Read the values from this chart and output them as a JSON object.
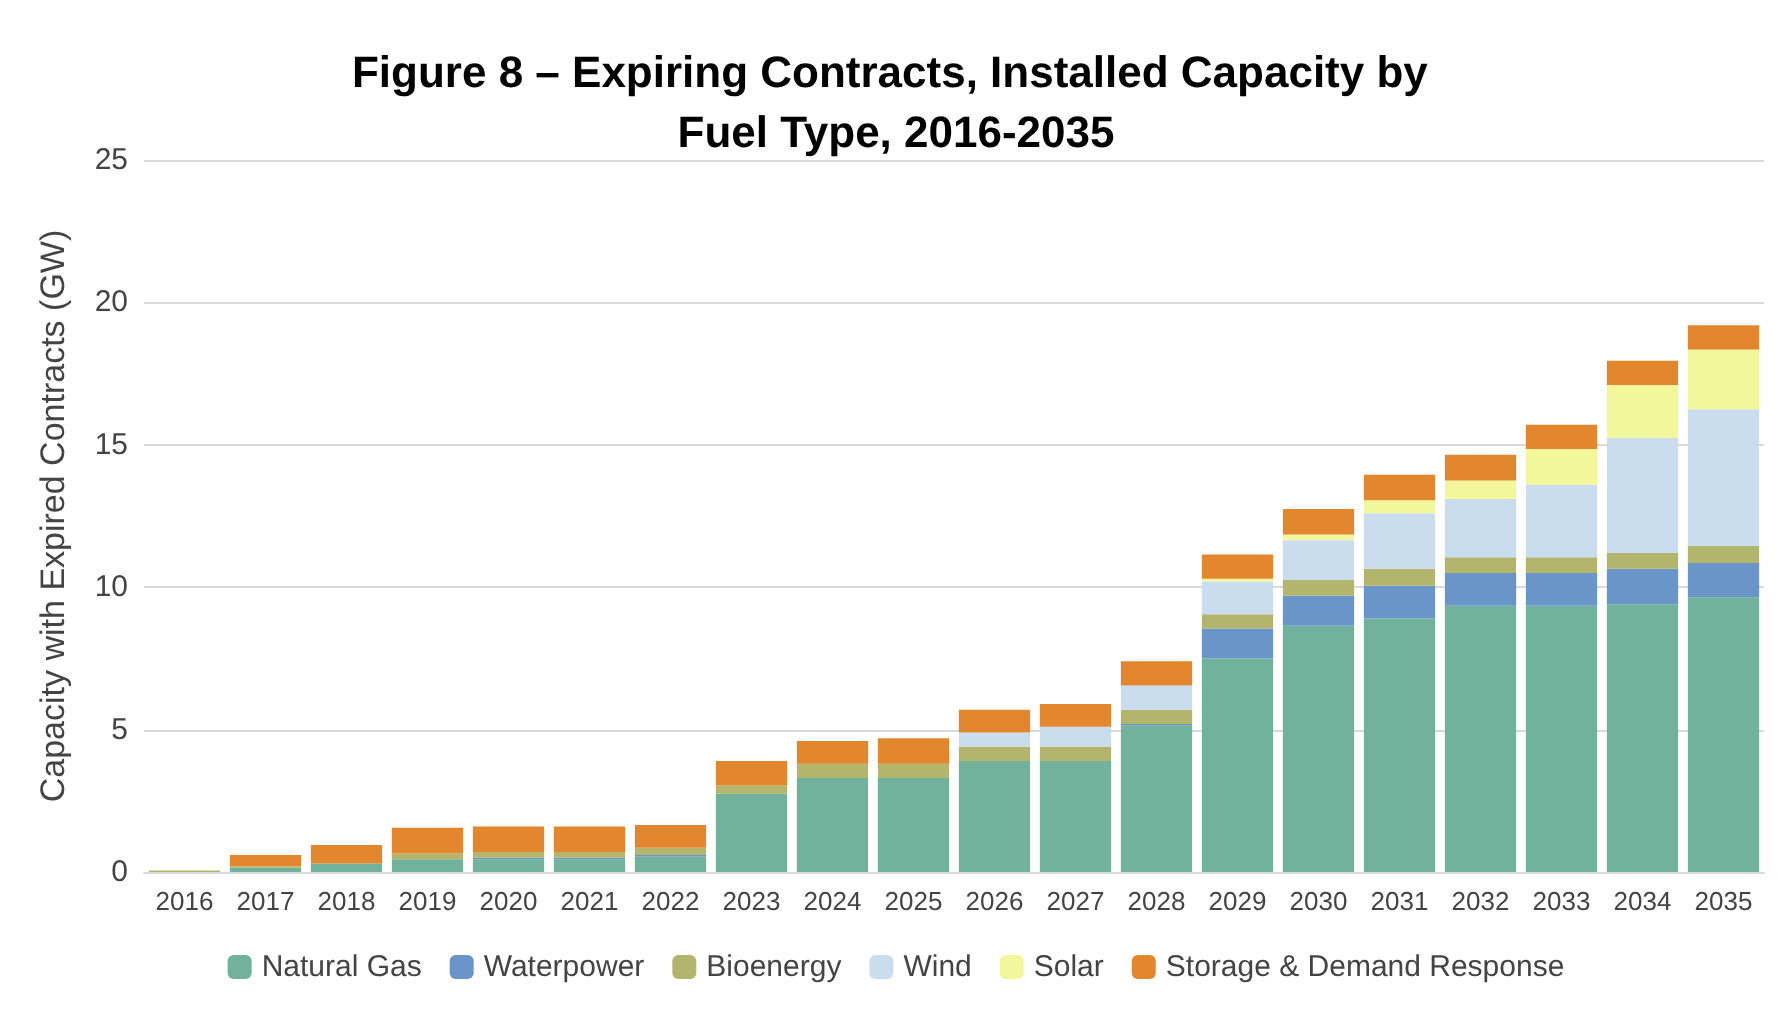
{
  "chart_data": {
    "type": "bar",
    "title": "Figure 8 – Expiring Contracts, Installed Capacity by Fuel Type, 2016-2035",
    "ylabel": "Capacity with Expired Contracts (GW)",
    "categories": [
      "2016",
      "2017",
      "2018",
      "2019",
      "2020",
      "2021",
      "2022",
      "2023",
      "2024",
      "2025",
      "2026",
      "2027",
      "2028",
      "2029",
      "2030",
      "2031",
      "2032",
      "2033",
      "2034",
      "2035"
    ],
    "stacked": true,
    "ylim": [
      0,
      25
    ],
    "yticks": [
      0,
      5,
      10,
      15,
      20,
      25
    ],
    "grid": "y",
    "legend": "bottom",
    "series": [
      {
        "name": "Natural Gas",
        "color": "#70b29c",
        "values": [
          0,
          0.15,
          0.3,
          0.45,
          0.45,
          0.45,
          0.55,
          2.75,
          3.3,
          3.3,
          3.9,
          3.9,
          5.15,
          7.5,
          8.65,
          8.9,
          9.35,
          9.35,
          9.4,
          9.65
        ]
      },
      {
        "name": "Waterpower",
        "color": "#6a95c8",
        "values": [
          0,
          0,
          0,
          0,
          0.05,
          0.05,
          0.05,
          0,
          0,
          0,
          0,
          0,
          0.05,
          1.05,
          1.05,
          1.15,
          1.15,
          1.15,
          1.25,
          1.2
        ]
      },
      {
        "name": "Bioenergy",
        "color": "#b2b56b",
        "values": [
          0.05,
          0.05,
          0,
          0.2,
          0.2,
          0.2,
          0.25,
          0.3,
          0.5,
          0.5,
          0.5,
          0.5,
          0.5,
          0.5,
          0.55,
          0.6,
          0.55,
          0.55,
          0.55,
          0.6
        ]
      },
      {
        "name": "Wind",
        "color": "#c9ddee",
        "values": [
          0,
          0,
          0,
          0,
          0,
          0,
          0,
          0,
          0,
          0,
          0.5,
          0.7,
          0.85,
          1.15,
          1.4,
          1.95,
          2.05,
          2.55,
          4.05,
          4.8
        ]
      },
      {
        "name": "Solar",
        "color": "#f2f79b",
        "values": [
          0,
          0,
          0,
          0,
          0,
          0,
          0,
          0,
          0,
          0,
          0,
          0,
          0,
          0.1,
          0.2,
          0.45,
          0.65,
          1.25,
          1.85,
          2.1
        ]
      },
      {
        "name": "Storage & Demand Response",
        "color": "#e2872e",
        "values": [
          0,
          0.4,
          0.65,
          0.9,
          0.9,
          0.9,
          0.8,
          0.85,
          0.8,
          0.9,
          0.8,
          0.8,
          0.85,
          0.85,
          0.9,
          0.9,
          0.9,
          0.85,
          0.85,
          0.85
        ]
      }
    ]
  }
}
